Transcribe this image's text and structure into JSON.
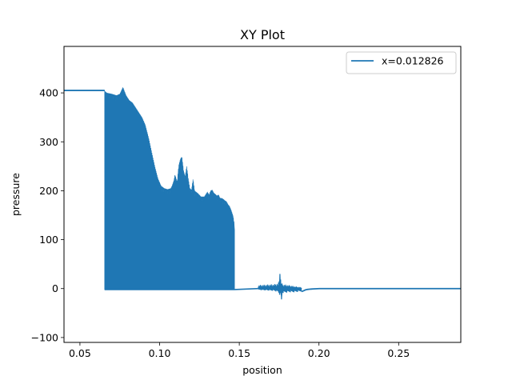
{
  "chart_data": {
    "type": "line",
    "title": "XY Plot",
    "xlabel": "position",
    "ylabel": "pressure",
    "xlim": [
      0.04,
      0.289
    ],
    "ylim": [
      -110,
      495
    ],
    "xticks": [
      0.05,
      0.1,
      0.15,
      0.2,
      0.25
    ],
    "xtick_labels": [
      "0.05",
      "0.10",
      "0.15",
      "0.20",
      "0.25"
    ],
    "yticks": [
      -100,
      0,
      100,
      200,
      300,
      400
    ],
    "ytick_labels": [
      "−100",
      "0",
      "100",
      "200",
      "300",
      "400"
    ],
    "grid": false,
    "legend_position": "upper right",
    "series": [
      {
        "name": "x=0.012826",
        "color": "#1f77b4",
        "plateau": {
          "x": [
            0.04,
            0.0655
          ],
          "y": 405
        },
        "oscillation_low": -2,
        "oscillation_upper_envelope": {
          "x": [
            0.0655,
            0.067,
            0.07,
            0.073,
            0.075,
            0.077,
            0.079,
            0.081,
            0.083,
            0.085,
            0.087,
            0.089,
            0.091,
            0.093,
            0.095,
            0.097,
            0.099,
            0.101,
            0.103,
            0.105,
            0.107,
            0.108,
            0.109,
            0.1095,
            0.11,
            0.111,
            0.112,
            0.113,
            0.114,
            0.115,
            0.116,
            0.117,
            0.118,
            0.119,
            0.12,
            0.121,
            0.122,
            0.124,
            0.126,
            0.128,
            0.13,
            0.131,
            0.132,
            0.133,
            0.134,
            0.135,
            0.136,
            0.137,
            0.138,
            0.139,
            0.14,
            0.141,
            0.142,
            0.143,
            0.144,
            0.145,
            0.146,
            0.1468,
            0.147
          ],
          "y": [
            404,
            400,
            398,
            395,
            398,
            412,
            395,
            385,
            380,
            370,
            360,
            350,
            335,
            310,
            280,
            250,
            225,
            210,
            205,
            203,
            205,
            212,
            222,
            232,
            230,
            218,
            252,
            265,
            270,
            242,
            230,
            250,
            225,
            205,
            202,
            225,
            200,
            195,
            188,
            188,
            198,
            192,
            200,
            202,
            196,
            193,
            190,
            192,
            185,
            185,
            183,
            180,
            178,
            172,
            168,
            160,
            150,
            135,
            120
          ]
        },
        "noise_region": {
          "x": [
            0.162,
            0.172,
            0.1745,
            0.1755,
            0.1765,
            0.177,
            0.181,
            0.185,
            0.189
          ],
          "envelope_high": [
            8,
            10,
            12,
            30,
            15,
            10,
            8,
            5,
            3
          ],
          "envelope_low": [
            -3,
            -5,
            -8,
            -15,
            -22,
            -10,
            -8,
            -8,
            -6
          ]
        },
        "tail": {
          "x": [
            0.189,
            0.19,
            0.192,
            0.195,
            0.2,
            0.289
          ],
          "y": [
            -6,
            -5,
            -2,
            -1,
            0,
            0
          ]
        }
      }
    ]
  }
}
